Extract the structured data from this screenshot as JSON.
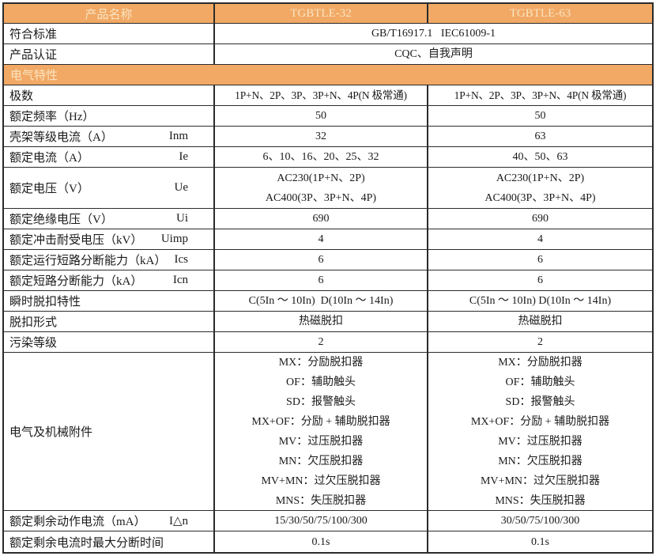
{
  "colors": {
    "header_bg": "#F1A965",
    "header_text": "#FAE4C1",
    "border": "#2B2B2B"
  },
  "header": {
    "name_label": "产品名称",
    "col1": "TGBTLE-32",
    "col2": "TGBTLE-63"
  },
  "section_title": "电气特性",
  "rows": [
    {
      "label": "符合标准",
      "value": "GB/T16917.1   IEC61009-1"
    },
    {
      "label": "产品认证",
      "value": "CQC、自我声明"
    },
    {
      "label": "极数",
      "c1": "1P+N、2P、3P、3P+N、4P(N 极常通)",
      "c2": "1P+N、2P、3P、3P+N、4P(N 极常通)"
    },
    {
      "label": "额定频率（Hz）",
      "c1": "50",
      "c2": "50"
    },
    {
      "label": "壳架等级电流（A）",
      "sym": "Inm",
      "c1": "32",
      "c2": "63"
    },
    {
      "label": "额定电流（A）",
      "sym": "Ie",
      "c1": "6、10、16、20、25、32",
      "c2": "40、50、63"
    },
    {
      "label": "额定电压（V）",
      "sym": "Ue",
      "c1": "AC230(1P+N、2P)\nAC400(3P、3P+N、4P)",
      "c2": "AC230(1P+N、2P)\nAC400(3P、3P+N、4P)"
    },
    {
      "label": "额定绝缘电压（V）",
      "sym": "Ui",
      "c1": "690",
      "c2": "690"
    },
    {
      "label": "额定冲击耐受电压（kV）",
      "sym": "Uimp",
      "c1": "4",
      "c2": "4"
    },
    {
      "label": "额定运行短路分断能力（kA）",
      "sym": "Ics",
      "c1": "6",
      "c2": "6"
    },
    {
      "label": "额定短路分断能力（kA）",
      "sym": "Icn",
      "c1": "6",
      "c2": "6"
    },
    {
      "label": "瞬时脱扣特性",
      "c1": "C(5In ～ 10In)  D(10In ～ 14In)",
      "c2": "C(5In ～ 10In) D(10In ～ 14In)"
    },
    {
      "label": "脱扣形式",
      "c1": "热磁脱扣",
      "c2": "热磁脱扣"
    },
    {
      "label": "污染等级",
      "c1": "2",
      "c2": "2"
    },
    {
      "label": "电气及机械附件",
      "c1": "MX：分励脱扣器\nOF：辅助触头\nSD：报警触头\nMX+OF：分励 + 辅助脱扣器\nMV：过压脱扣器\nMN：欠压脱扣器\nMV+MN：过欠压脱扣器\nMNS：失压脱扣器",
      "c2": "MX：分励脱扣器\nOF：辅助触头\nSD：报警触头\nMX+OF：分励 + 辅助脱扣器\nMV：过压脱扣器\nMN：欠压脱扣器\nMV+MN：过欠压脱扣器\nMNS：失压脱扣器"
    },
    {
      "label": "额定剩余动作电流（mA）",
      "sym": "I△n",
      "c1": "15/30/50/75/100/300",
      "c2": "30/50/75/100/300"
    },
    {
      "label": "额定剩余电流时最大分断时间",
      "c1": "0.1s",
      "c2": "0.1s"
    }
  ]
}
